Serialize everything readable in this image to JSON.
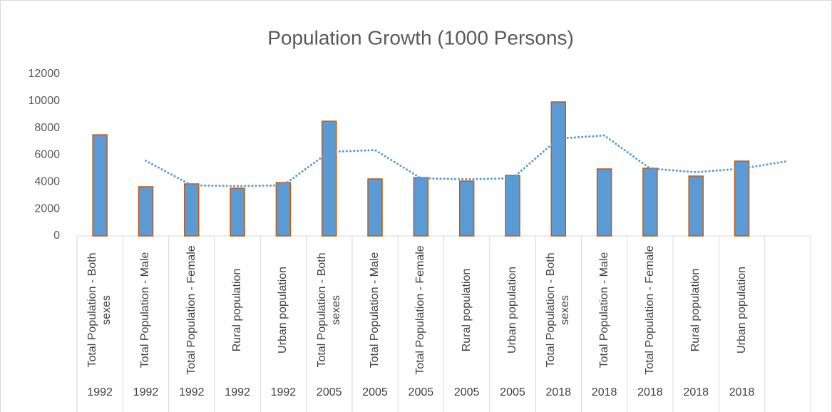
{
  "chart_data": {
    "type": "bar",
    "title": "Population Growth (1000 Persons)",
    "categories": [
      "Total Population - Both sexes",
      "Total Population - Male",
      "Total Population - Female",
      "Rural population",
      "Urban population",
      "Total Population - Both sexes",
      "Total Population - Male",
      "Total Population - Female",
      "Rural population",
      "Urban population",
      "Total Population - Both sexes",
      "Total Population - Male",
      "Total Population - Female",
      "Rural population",
      "Urban population",
      null
    ],
    "category_groups": [
      "1992",
      "1992",
      "1992",
      "1992",
      "1992",
      "2005",
      "2005",
      "2005",
      "2005",
      "2005",
      "2018",
      "2018",
      "2018",
      "2018",
      "2018",
      null
    ],
    "values": [
      7500,
      3650,
      3860,
      3540,
      3960,
      8510,
      4230,
      4330,
      4070,
      4490,
      9940,
      4970,
      5020,
      4440,
      5550,
      null
    ],
    "color": "#5b9bd5",
    "edge_color": "#c55a11",
    "trendline": {
      "values": [
        null,
        5575,
        3755,
        3700,
        3750,
        6235,
        6370,
        4280,
        4200,
        4280,
        7215,
        7455,
        4995,
        4730,
        4995,
        5550
      ],
      "color": "#5b9bd5",
      "style": "dotted"
    },
    "ylim": [
      0,
      12000
    ],
    "yticks": [
      0,
      2000,
      4000,
      6000,
      8000,
      10000,
      12000
    ],
    "grid": false
  }
}
